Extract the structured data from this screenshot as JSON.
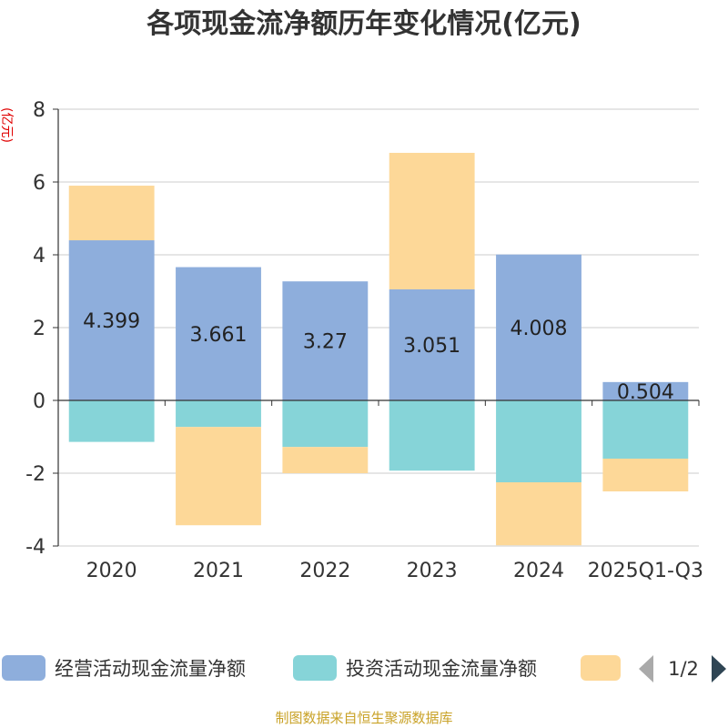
{
  "chart_data": {
    "type": "bar",
    "stacked": true,
    "title": "各项现金流净额历年变化情况(亿元)",
    "ylabel": "(亿元)",
    "xlabel": "",
    "ylim": [
      -4,
      8
    ],
    "yticks": [
      -4,
      -2,
      0,
      2,
      4,
      6,
      8
    ],
    "grid": true,
    "legend_position": "bottom",
    "categories": [
      "2020",
      "2021",
      "2022",
      "2023",
      "2024",
      "2025Q1-Q3"
    ],
    "series": [
      {
        "name": "经营活动现金流量净额",
        "color": "#8eaedc",
        "values": [
          4.399,
          3.661,
          3.27,
          3.051,
          4.008,
          0.504
        ],
        "labels": [
          "4.399",
          "3.661",
          "3.27",
          "3.051",
          "4.008",
          "0.504"
        ]
      },
      {
        "name": "投资活动现金流量净额",
        "color": "#86d4d8",
        "values": [
          -1.14,
          -0.73,
          -1.28,
          -1.93,
          -2.25,
          -1.6
        ]
      },
      {
        "name": "",
        "color": "#fdd898",
        "values": [
          1.5,
          -2.7,
          -0.72,
          3.75,
          -1.73,
          -0.9
        ]
      }
    ],
    "legend": {
      "pager": "1/2"
    },
    "source": "制图数据来自恒生聚源数据库"
  }
}
